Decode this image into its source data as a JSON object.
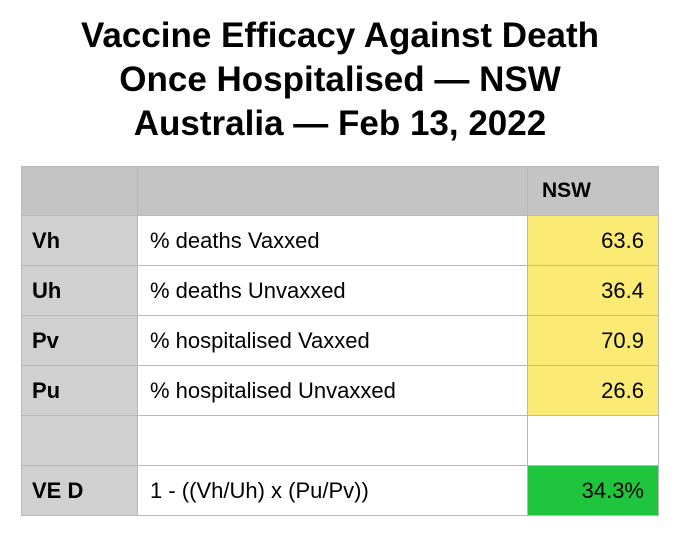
{
  "title": {
    "line1": "Vaccine Efficacy Against Death",
    "line2": "Once Hospitalised — NSW",
    "line3": "Australia — Feb 13, 2022"
  },
  "table": {
    "header": {
      "col0": "",
      "col1": "",
      "col2": "NSW"
    },
    "rows": [
      {
        "code": "Vh",
        "description": "% deaths Vaxxed",
        "value": "63.6"
      },
      {
        "code": "Uh",
        "description": "% deaths Unvaxxed",
        "value": "36.4"
      },
      {
        "code": "Pv",
        "description": "% hospitalised Vaxxed",
        "value": "70.9"
      },
      {
        "code": "Pu",
        "description": "% hospitalised Unvaxxed",
        "value": "26.6"
      },
      {
        "code": "",
        "description": "",
        "value": ""
      },
      {
        "code": "VE D",
        "description": "1 - ((Vh/Uh) x (Pu/Pv))",
        "value": "34.3%"
      }
    ]
  },
  "colors": {
    "input_highlight": "#fbeb74",
    "result_highlight": "#1fc53c",
    "header_fill": "#c4c4c4",
    "label_fill": "#d0d0d0"
  }
}
